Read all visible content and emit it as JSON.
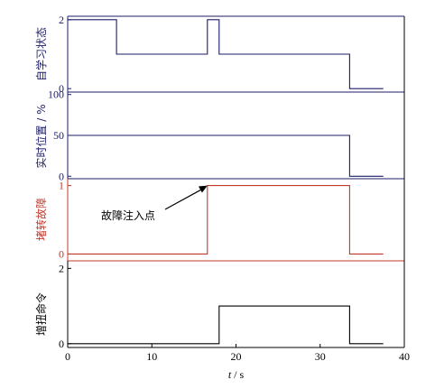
{
  "chart_data": {
    "type": "line",
    "x_axis": {
      "label_italic": "t",
      "label_rest": " / s",
      "ticks": [
        "0",
        "10",
        "20",
        "30",
        "40"
      ],
      "tick_values": [
        0,
        10,
        20,
        30,
        40
      ],
      "range": [
        0,
        40
      ]
    },
    "panels": [
      {
        "id": "p1",
        "ylabel": "自学习状态",
        "color": "#1c1c6b",
        "ylim": [
          -0.1,
          2.1
        ],
        "yticks": [
          {
            "v": 0,
            "label": "0"
          },
          {
            "v": 2,
            "label": "2"
          }
        ],
        "x": [
          0,
          5.8,
          5.8,
          16.6,
          16.6,
          18,
          18,
          33.5,
          33.5,
          37.5
        ],
        "y": [
          2,
          2,
          1,
          1,
          2,
          2,
          1,
          1,
          0,
          0
        ]
      },
      {
        "id": "p2",
        "ylabel": "实时位置 / %",
        "color": "#1c1c6b",
        "ylim": [
          -3,
          103
        ],
        "yticks": [
          {
            "v": 0,
            "label": "0"
          },
          {
            "v": 50,
            "label": "50"
          },
          {
            "v": 100,
            "label": "100"
          }
        ],
        "x": [
          0,
          33.5,
          33.5,
          37.5
        ],
        "y": [
          50,
          50,
          0,
          0
        ]
      },
      {
        "id": "p3",
        "ylabel": "堵转故障",
        "color": "#c0392b",
        "ylim": [
          -0.1,
          1.1
        ],
        "yticks": [
          {
            "v": 0,
            "label": "0"
          },
          {
            "v": 1,
            "label": "1"
          }
        ],
        "x": [
          0,
          16.6,
          16.6,
          33.5,
          33.5,
          37.5
        ],
        "y": [
          0,
          0,
          1,
          1,
          0,
          0
        ]
      },
      {
        "id": "p4",
        "ylabel": "增扭命令",
        "color": "#000000",
        "ylim": [
          -0.1,
          2.2
        ],
        "yticks": [
          {
            "v": 0,
            "label": "0"
          },
          {
            "v": 2,
            "label": "2"
          }
        ],
        "x": [
          0,
          18,
          18,
          33.5,
          33.5,
          37.5
        ],
        "y": [
          0,
          0,
          1,
          1,
          0,
          0
        ]
      }
    ],
    "annotation": {
      "text": "故障注入点",
      "target_x": 16.6,
      "target_y": 1
    }
  }
}
